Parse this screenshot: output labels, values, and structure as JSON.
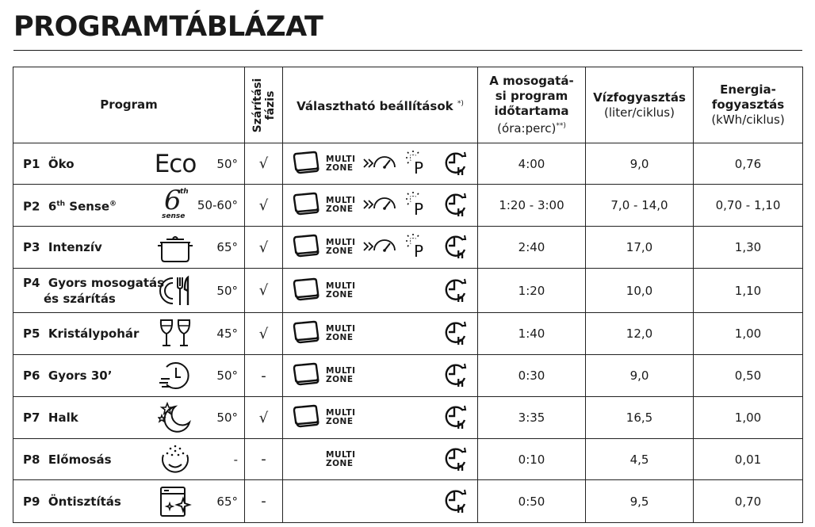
{
  "title": "PROGRAMTÁBLÁZAT",
  "header": {
    "program": "Program",
    "drying_line1": "Szárítási",
    "drying_line2": "fázis",
    "options": "Választható beállítások",
    "options_note": "*)",
    "duration_lines": [
      "A mosogatá-",
      "si program",
      "időtartama"
    ],
    "duration_unit": "(óra:perc)",
    "duration_note": "**)",
    "water": "Vízfogyasztás",
    "water_unit": "(liter/ciklus)",
    "energy_lines": [
      "Energia-",
      "fogyasztás"
    ],
    "energy_unit": "(kWh/ciklus)"
  },
  "option_labels": {
    "multi_line1": "MULTI",
    "multi_line2": "ZONE"
  },
  "rows": [
    {
      "code": "P1",
      "name": "Öko",
      "icon": "eco-text-icon",
      "icon_text": "Eco",
      "temp": "50°",
      "drying": "√",
      "duration": "4:00",
      "water": "9,0",
      "energy": "0,76"
    },
    {
      "code": "P2",
      "name": "6",
      "name_sup": "th",
      "name_rest": " Sense",
      "name_mark": "®",
      "icon": "6th-sense-icon",
      "icon_num": "6",
      "icon_sup": "th",
      "icon_word": "sense",
      "temp": "50-60°",
      "drying": "√",
      "duration": "1:20 - 3:00",
      "water": "7,0 - 14,0",
      "energy": "0,70 - 1,10"
    },
    {
      "code": "P3",
      "name": "Intenzív",
      "icon": "pot-icon",
      "temp": "65°",
      "drying": "√",
      "duration": "2:40",
      "water": "17,0",
      "energy": "1,30"
    },
    {
      "code": "P4",
      "name": "Gyors mosogatás",
      "name_line2": "és szárítás",
      "icon": "plate-cutlery-icon",
      "temp": "50°",
      "drying": "√",
      "duration": "1:20",
      "water": "10,0",
      "energy": "1,10"
    },
    {
      "code": "P5",
      "name": "Kristálypohár",
      "icon": "wine-glasses-icon",
      "temp": "45°",
      "drying": "√",
      "duration": "1:40",
      "water": "12,0",
      "energy": "1,00"
    },
    {
      "code": "P6",
      "name": "Gyors 30’",
      "icon": "fast-clock-icon",
      "temp": "50°",
      "drying": "-",
      "duration": "0:30",
      "water": "9,0",
      "energy": "0,50"
    },
    {
      "code": "P7",
      "name": "Halk",
      "icon": "moon-stars-icon",
      "temp": "50°",
      "drying": "√",
      "duration": "3:35",
      "water": "16,5",
      "energy": "1,00"
    },
    {
      "code": "P8",
      "name": "Előmosás",
      "icon": "prewash-icon",
      "temp": "-",
      "drying": "-",
      "duration": "0:10",
      "water": "4,5",
      "energy": "0,01"
    },
    {
      "code": "P9",
      "name": "Öntisztítás",
      "icon": "self-clean-icon",
      "temp": "65°",
      "drying": "-",
      "duration": "0:50",
      "water": "9,5",
      "energy": "0,70"
    }
  ]
}
